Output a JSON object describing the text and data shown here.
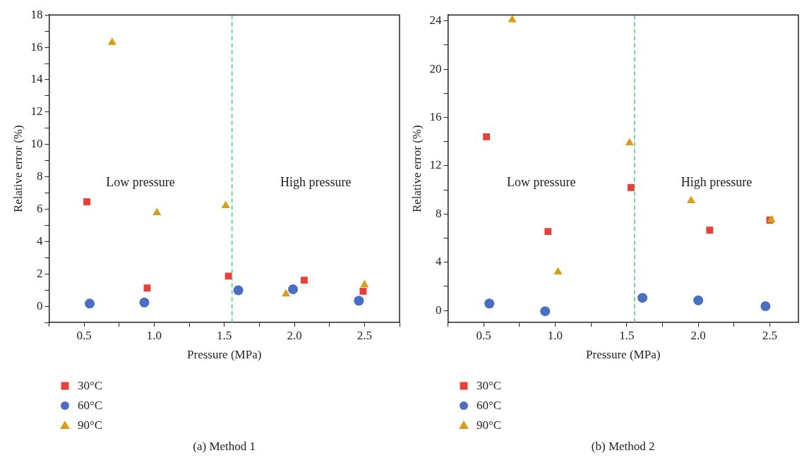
{
  "chart_data": [
    {
      "type": "scatter",
      "title": "(a) Method 1",
      "xlabel": "Pressure (MPa)",
      "ylabel": "Relative error (%)",
      "xlim": [
        0.25,
        2.75
      ],
      "xticks": [
        {
          "value": 0.25,
          "label": null
        },
        {
          "value": 0.5,
          "label": "0.5"
        },
        {
          "value": 0.75,
          "label": null
        },
        {
          "value": 1,
          "label": "1.0"
        },
        {
          "value": 1.25,
          "label": null
        },
        {
          "value": 1.5,
          "label": "1.5"
        },
        {
          "value": 1.75,
          "label": null
        },
        {
          "value": 2,
          "label": "2.0"
        },
        {
          "value": 2.25,
          "label": null
        },
        {
          "value": 2.5,
          "label": "2.5"
        },
        {
          "value": 2.75,
          "label": null
        }
      ],
      "ylim": [
        -1,
        18
      ],
      "yticks": [
        {
          "value": -1,
          "label": null
        },
        0,
        {
          "value": 1,
          "label": null
        },
        2,
        {
          "value": 3,
          "label": null
        },
        4,
        {
          "value": 5,
          "label": null
        },
        6,
        {
          "value": 7,
          "label": null
        },
        8,
        {
          "value": 9,
          "label": null
        },
        10,
        {
          "value": 11,
          "label": null
        },
        12,
        {
          "value": 13,
          "label": null
        },
        14,
        {
          "value": 15,
          "label": null
        },
        16,
        {
          "value": 17,
          "label": null
        },
        18
      ],
      "grid": false,
      "legend": "bottom left",
      "series": [
        {
          "name": "30°C",
          "color": "#e8413c",
          "marker": "square",
          "x": [
            0.52,
            0.95,
            1.53,
            2.07,
            2.49
          ],
          "values": [
            6.46,
            1.13,
            1.87,
            1.62,
            0.93
          ]
        },
        {
          "name": "60°C",
          "color": "#4a6fc2",
          "marker": "circle",
          "x": [
            0.54,
            0.93,
            1.6,
            1.99,
            2.46
          ],
          "values": [
            0.17,
            0.24,
            0.99,
            1.06,
            0.35
          ]
        },
        {
          "name": "90°C",
          "color": "#d59f1c",
          "marker": "triangle",
          "x": [
            0.7,
            1.02,
            1.51,
            1.94,
            2.5
          ],
          "values": [
            16.3,
            5.78,
            6.22,
            0.76,
            1.33
          ]
        }
      ],
      "ref_lines": [
        {
          "axis": "x",
          "value": 1.555,
          "color": "#4cc774",
          "line_style": "dashed"
        }
      ],
      "annotations": [
        "Low pressure",
        "High pressure"
      ]
    },
    {
      "type": "scatter",
      "title": "(b) Method 2",
      "xlabel": "Pressure (MPa)",
      "ylabel": "Relative error (%)",
      "xlim": [
        0.25,
        2.7
      ],
      "xticks": [
        {
          "value": 0.25,
          "label": null
        },
        {
          "value": 0.5,
          "label": "0.5"
        },
        {
          "value": 0.75,
          "label": null
        },
        {
          "value": 1,
          "label": "1.0"
        },
        {
          "value": 1.25,
          "label": null
        },
        {
          "value": 1.5,
          "label": "1.5"
        },
        {
          "value": 1.75,
          "label": null
        },
        {
          "value": 2,
          "label": "2.0"
        },
        {
          "value": 2.25,
          "label": null
        },
        {
          "value": 2.5,
          "label": "2.5"
        }
      ],
      "ylim": [
        -1,
        24.5
      ],
      "yticks": [
        0,
        {
          "value": 2,
          "label": null
        },
        4,
        {
          "value": 6,
          "label": null
        },
        8,
        {
          "value": 10,
          "label": null
        },
        12,
        {
          "value": 14,
          "label": null
        },
        16,
        {
          "value": 18,
          "label": null
        },
        20,
        {
          "value": 22,
          "label": null
        },
        24
      ],
      "grid": false,
      "legend": "bottom left",
      "series": [
        {
          "name": "30°C",
          "color": "#e8413c",
          "marker": "square",
          "x": [
            0.52,
            0.95,
            1.53,
            2.08,
            2.5
          ],
          "values": [
            14.4,
            6.55,
            10.2,
            6.66,
            7.49
          ]
        },
        {
          "name": "60°C",
          "color": "#4a6fc2",
          "marker": "circle",
          "x": [
            0.54,
            0.93,
            1.61,
            2.0,
            2.47
          ],
          "values": [
            0.58,
            -0.06,
            1.05,
            0.84,
            0.36
          ]
        },
        {
          "name": "90°C",
          "color": "#d59f1c",
          "marker": "triangle",
          "x": [
            0.7,
            1.02,
            1.52,
            1.95,
            2.51
          ],
          "values": [
            24.1,
            3.2,
            13.9,
            9.1,
            7.5
          ]
        }
      ],
      "ref_lines": [
        {
          "axis": "x",
          "value": 1.555,
          "color": "#4cc774",
          "line_style": "dashed"
        }
      ],
      "annotations": [
        "Low pressure",
        "High pressure"
      ]
    }
  ]
}
